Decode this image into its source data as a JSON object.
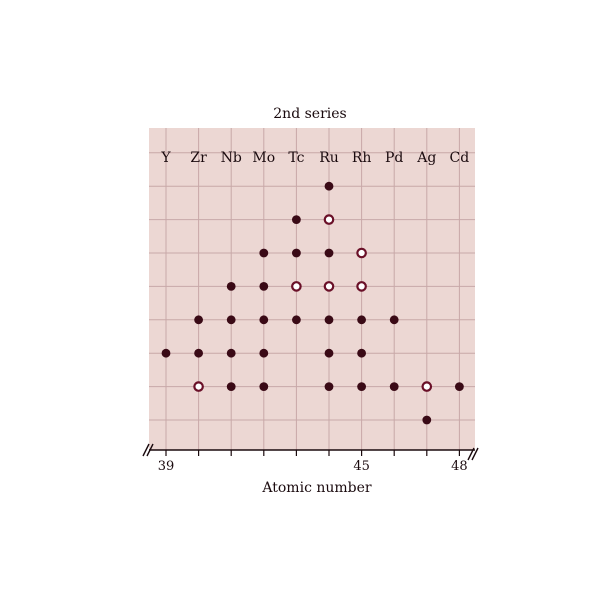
{
  "chart_data": {
    "type": "scatter",
    "title": "2nd series",
    "xlabel": "Atomic number",
    "ylabel": "",
    "elements": [
      "Y",
      "Zr",
      "Nb",
      "Mo",
      "Tc",
      "Ru",
      "Rh",
      "Pd",
      "Ag",
      "Cd"
    ],
    "x_tick_labels": [
      {
        "value": 39,
        "label": "39"
      },
      {
        "value": 45,
        "label": "45"
      },
      {
        "value": 48,
        "label": "48"
      }
    ],
    "xlim": [
      39,
      48
    ],
    "ylim": [
      1,
      9
    ],
    "grid": true,
    "axis_break": true,
    "legend": "none",
    "marker_styles": {
      "filled": "#3a0a16",
      "open_stroke": "#6a1028",
      "open_fill": "#ffffff"
    },
    "background_color": "#ecd7d3",
    "grid_color": "#c8a8a8",
    "points": [
      {
        "x": 39,
        "y": 3,
        "marker": "filled"
      },
      {
        "x": 40,
        "y": 2,
        "marker": "open"
      },
      {
        "x": 40,
        "y": 3,
        "marker": "filled"
      },
      {
        "x": 40,
        "y": 4,
        "marker": "filled"
      },
      {
        "x": 41,
        "y": 2,
        "marker": "filled"
      },
      {
        "x": 41,
        "y": 3,
        "marker": "filled"
      },
      {
        "x": 41,
        "y": 4,
        "marker": "filled"
      },
      {
        "x": 41,
        "y": 5,
        "marker": "filled"
      },
      {
        "x": 42,
        "y": 2,
        "marker": "filled"
      },
      {
        "x": 42,
        "y": 3,
        "marker": "filled"
      },
      {
        "x": 42,
        "y": 4,
        "marker": "filled"
      },
      {
        "x": 42,
        "y": 5,
        "marker": "filled"
      },
      {
        "x": 42,
        "y": 6,
        "marker": "filled"
      },
      {
        "x": 43,
        "y": 4,
        "marker": "filled"
      },
      {
        "x": 43,
        "y": 5,
        "marker": "open"
      },
      {
        "x": 43,
        "y": 6,
        "marker": "filled"
      },
      {
        "x": 43,
        "y": 7,
        "marker": "filled"
      },
      {
        "x": 44,
        "y": 2,
        "marker": "filled"
      },
      {
        "x": 44,
        "y": 3,
        "marker": "filled"
      },
      {
        "x": 44,
        "y": 4,
        "marker": "filled"
      },
      {
        "x": 44,
        "y": 5,
        "marker": "open"
      },
      {
        "x": 44,
        "y": 6,
        "marker": "filled"
      },
      {
        "x": 44,
        "y": 7,
        "marker": "open"
      },
      {
        "x": 44,
        "y": 8,
        "marker": "filled"
      },
      {
        "x": 45,
        "y": 2,
        "marker": "filled"
      },
      {
        "x": 45,
        "y": 3,
        "marker": "filled"
      },
      {
        "x": 45,
        "y": 4,
        "marker": "filled"
      },
      {
        "x": 45,
        "y": 5,
        "marker": "open"
      },
      {
        "x": 45,
        "y": 6,
        "marker": "open"
      },
      {
        "x": 46,
        "y": 2,
        "marker": "filled"
      },
      {
        "x": 46,
        "y": 4,
        "marker": "filled"
      },
      {
        "x": 47,
        "y": 1,
        "marker": "filled"
      },
      {
        "x": 47,
        "y": 2,
        "marker": "open"
      },
      {
        "x": 48,
        "y": 2,
        "marker": "filled"
      }
    ]
  }
}
